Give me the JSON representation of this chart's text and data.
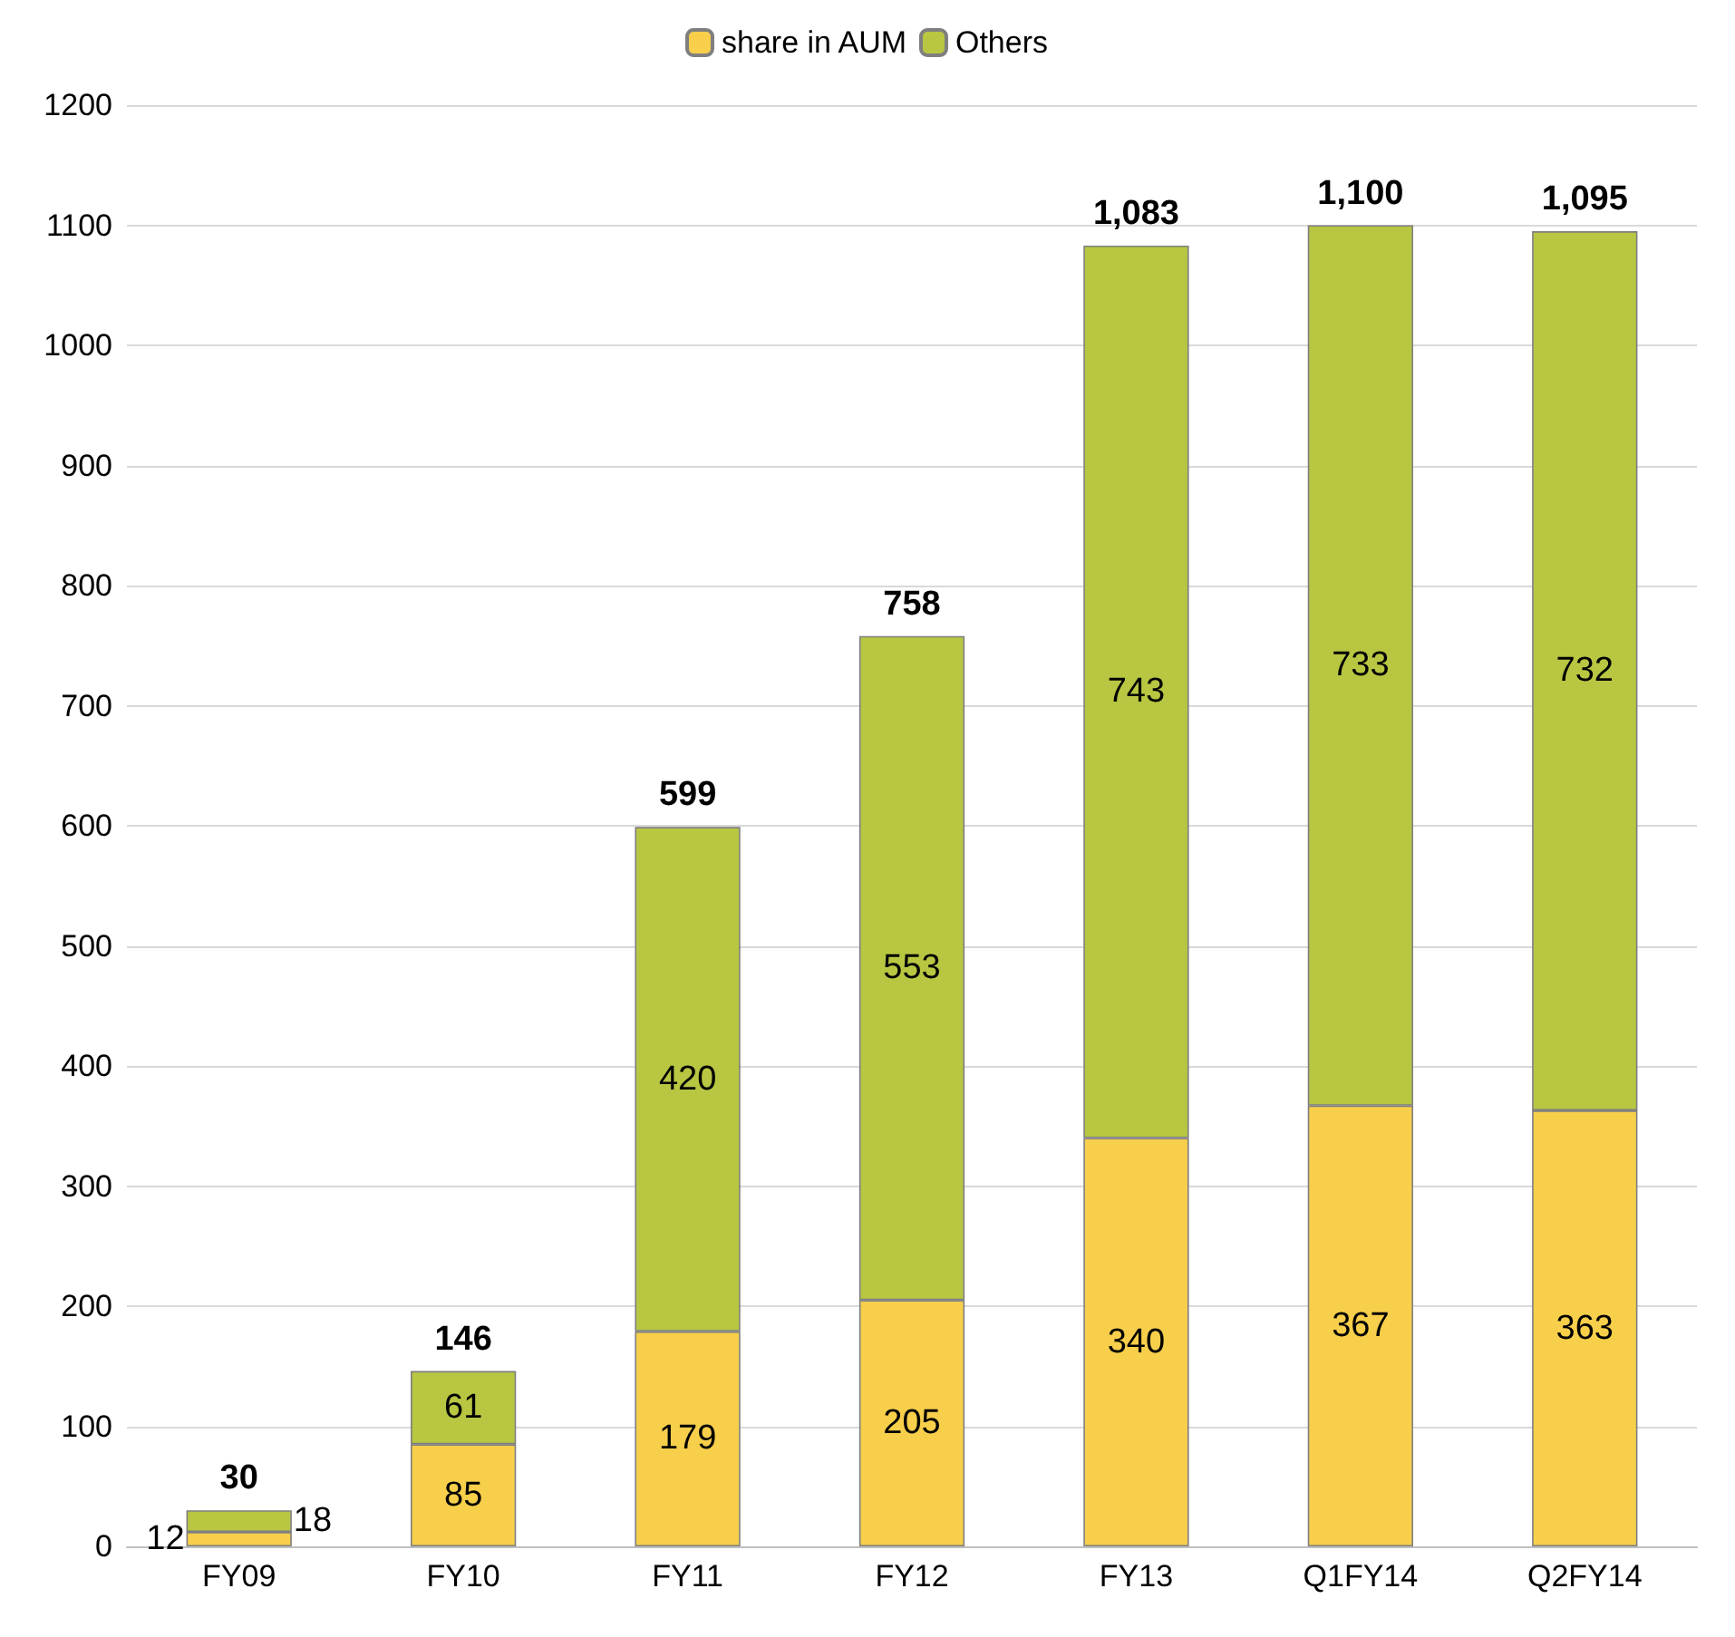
{
  "chart_data": {
    "type": "bar",
    "stacked": true,
    "categories": [
      "FY09",
      "FY10",
      "FY11",
      "FY12",
      "FY13",
      "Q1FY14",
      "Q2FY14"
    ],
    "series": [
      {
        "name": "share in AUM",
        "color": "#f8cf4b",
        "values": [
          12,
          85,
          179,
          205,
          340,
          367,
          363
        ]
      },
      {
        "name": "Others",
        "color": "#b8c642",
        "values": [
          18,
          61,
          420,
          553,
          743,
          733,
          732
        ]
      }
    ],
    "totals": [
      "30",
      "146",
      "599",
      "758",
      "1,083",
      "1,100",
      "1,095"
    ],
    "ylim": [
      0,
      1200
    ],
    "yticks": [
      0,
      100,
      200,
      300,
      400,
      500,
      600,
      700,
      800,
      900,
      1000,
      1100,
      1200
    ],
    "grid": "y",
    "legend": "top",
    "data_labels": true
  }
}
